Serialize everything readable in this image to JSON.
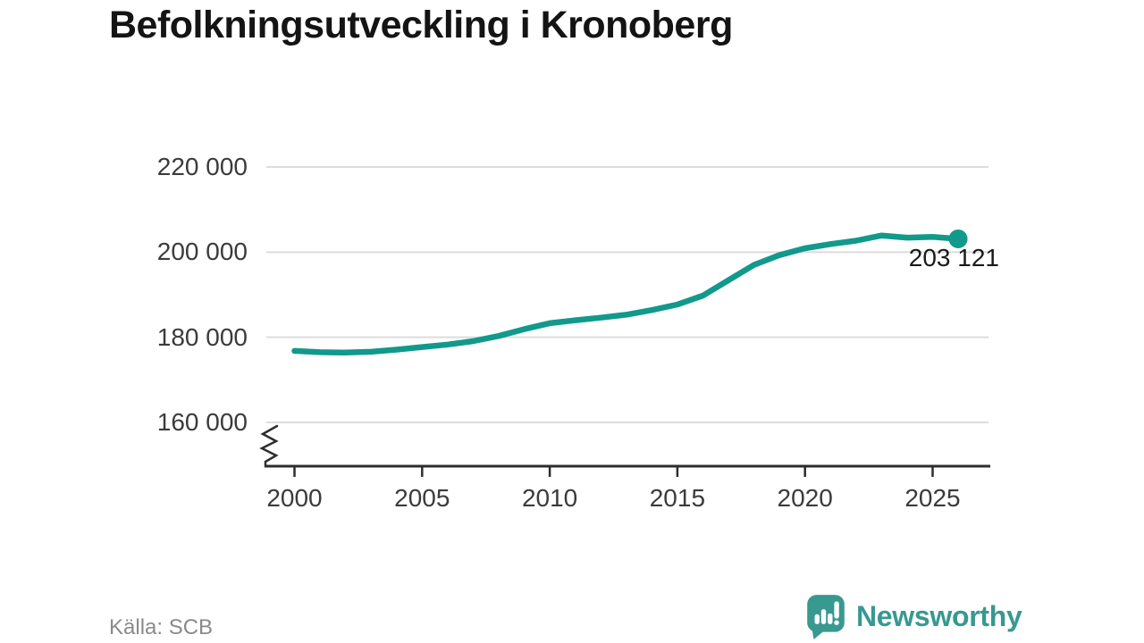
{
  "title": "Befolkningsutveckling i Kronoberg",
  "source": "Källa: SCB",
  "logo": {
    "text": "Newsworthy",
    "icon": "newsworthy-speech-bubble-bars-icon"
  },
  "colors": {
    "line": "#11998c",
    "marker": "#11998c",
    "grid": "#dcdcdc",
    "axis": "#2d2d2d",
    "tick_label": "#3b3b3b",
    "title": "#141414",
    "end_label": "#1a1a1a",
    "source": "#8a8a8a",
    "logo": "#37998f"
  },
  "chart_data": {
    "type": "line",
    "title": "Befolkningsutveckling i Kronoberg",
    "xlabel": "",
    "ylabel": "",
    "grid": true,
    "axis_break": true,
    "ylim": [
      160000,
      220000
    ],
    "y_ticks": [
      {
        "label": "220 000",
        "value": 220000
      },
      {
        "label": "200 000",
        "value": 200000
      },
      {
        "label": "180 000",
        "value": 180000
      },
      {
        "label": "160 000",
        "value": 160000
      }
    ],
    "x_ticks": [
      2000,
      2005,
      2010,
      2015,
      2020,
      2025
    ],
    "x": [
      2000,
      2001,
      2002,
      2003,
      2004,
      2005,
      2006,
      2007,
      2008,
      2009,
      2010,
      2011,
      2012,
      2013,
      2014,
      2015,
      2016,
      2017,
      2018,
      2019,
      2020,
      2021,
      2022,
      2023,
      2024,
      2025,
      2026
    ],
    "series": [
      {
        "name": "Kronoberg",
        "values": [
          176800,
          176500,
          176400,
          176600,
          177100,
          177700,
          178300,
          179100,
          180300,
          181900,
          183300,
          184000,
          184600,
          185300,
          186400,
          187700,
          189800,
          193400,
          197000,
          199300,
          200900,
          201900,
          202700,
          203900,
          203400,
          203600,
          203121
        ]
      }
    ],
    "end_value": 203121,
    "end_label": "203 121",
    "source": "Källa: SCB"
  }
}
